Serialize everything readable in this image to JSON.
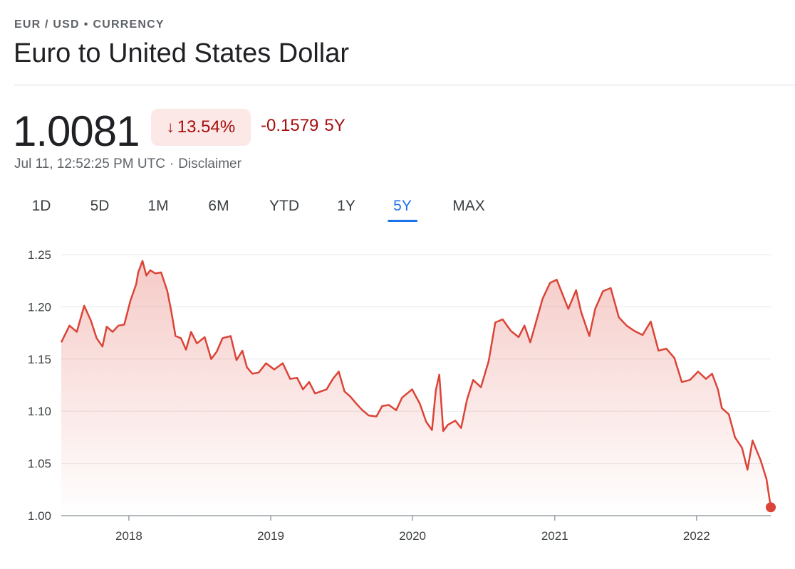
{
  "header": {
    "breadcrumb": [
      "EUR / USD",
      "•",
      "CURRENCY"
    ],
    "title": "Euro to United States Dollar"
  },
  "quote": {
    "price": "1.0081",
    "arrow_icon": "arrow-down-icon",
    "percent_change": "13.54%",
    "abs_change": "-0.1579",
    "period": "5Y",
    "timestamp": "Jul 11, 12:52:25 PM UTC",
    "separator": "·",
    "disclaimer": "Disclaimer"
  },
  "tabs": [
    {
      "label": "1D",
      "active": false
    },
    {
      "label": "5D",
      "active": false
    },
    {
      "label": "1M",
      "active": false
    },
    {
      "label": "6M",
      "active": false
    },
    {
      "label": "YTD",
      "active": false
    },
    {
      "label": "1Y",
      "active": false
    },
    {
      "label": "5Y",
      "active": true
    },
    {
      "label": "MAX",
      "active": false
    }
  ],
  "colors": {
    "line": "#db4437",
    "negative_text": "#a50e0e",
    "negative_bg": "#fce8e6",
    "active_tab": "#1a73e8"
  },
  "chart_data": {
    "type": "area",
    "xlabel": "",
    "ylabel": "",
    "ylim": [
      1.0,
      1.25
    ],
    "yticks": [
      "1.00",
      "1.05",
      "1.10",
      "1.15",
      "1.20",
      "1.25"
    ],
    "xtick_labels": [
      "2018",
      "2019",
      "2020",
      "2021",
      "2022"
    ],
    "xlim": [
      "2017-07-11",
      "2022-07-11"
    ],
    "grid": true,
    "series": [
      {
        "x": [
          "2017-07-11",
          "2017-08-01",
          "2017-08-20",
          "2017-09-08",
          "2017-09-25",
          "2017-10-10",
          "2017-10-25",
          "2017-11-05",
          "2017-11-20",
          "2017-12-05",
          "2017-12-20",
          "2018-01-05",
          "2018-01-20",
          "2018-01-25",
          "2018-02-05",
          "2018-02-15",
          "2018-02-25",
          "2018-03-10",
          "2018-03-25",
          "2018-04-10",
          "2018-04-20",
          "2018-05-01",
          "2018-05-15",
          "2018-05-28",
          "2018-06-10",
          "2018-06-25",
          "2018-07-15",
          "2018-08-01",
          "2018-08-15",
          "2018-08-30",
          "2018-09-20",
          "2018-10-05",
          "2018-10-20",
          "2018-11-01",
          "2018-11-15",
          "2018-12-01",
          "2018-12-20",
          "2019-01-10",
          "2019-02-01",
          "2019-02-20",
          "2019-03-10",
          "2019-03-25",
          "2019-04-10",
          "2019-04-25",
          "2019-05-10",
          "2019-05-25",
          "2019-06-10",
          "2019-06-25",
          "2019-07-10",
          "2019-07-25",
          "2019-08-10",
          "2019-08-25",
          "2019-09-10",
          "2019-09-30",
          "2019-10-15",
          "2019-11-01",
          "2019-11-20",
          "2019-12-05",
          "2019-12-31",
          "2020-01-20",
          "2020-02-05",
          "2020-02-20",
          "2020-03-01",
          "2020-03-10",
          "2020-03-20",
          "2020-04-01",
          "2020-04-20",
          "2020-05-05",
          "2020-05-20",
          "2020-06-05",
          "2020-06-25",
          "2020-07-15",
          "2020-08-01",
          "2020-08-20",
          "2020-09-10",
          "2020-09-30",
          "2020-10-15",
          "2020-10-30",
          "2020-11-15",
          "2020-12-01",
          "2020-12-20",
          "2021-01-06",
          "2021-01-20",
          "2021-02-05",
          "2021-02-25",
          "2021-03-10",
          "2021-03-31",
          "2021-04-15",
          "2021-05-05",
          "2021-05-25",
          "2021-06-15",
          "2021-07-05",
          "2021-07-25",
          "2021-08-15",
          "2021-09-05",
          "2021-09-25",
          "2021-10-15",
          "2021-11-05",
          "2021-11-24",
          "2021-12-15",
          "2022-01-05",
          "2022-01-25",
          "2022-02-10",
          "2022-02-25",
          "2022-03-07",
          "2022-03-25",
          "2022-04-10",
          "2022-04-28",
          "2022-05-12",
          "2022-05-25",
          "2022-06-15",
          "2022-06-30",
          "2022-07-11"
        ],
        "y": [
          1.166,
          1.182,
          1.176,
          1.201,
          1.187,
          1.17,
          1.162,
          1.181,
          1.176,
          1.182,
          1.183,
          1.206,
          1.222,
          1.233,
          1.244,
          1.23,
          1.235,
          1.232,
          1.233,
          1.215,
          1.196,
          1.172,
          1.17,
          1.159,
          1.176,
          1.165,
          1.171,
          1.15,
          1.157,
          1.17,
          1.172,
          1.149,
          1.158,
          1.142,
          1.136,
          1.137,
          1.146,
          1.14,
          1.146,
          1.131,
          1.132,
          1.121,
          1.128,
          1.117,
          1.119,
          1.121,
          1.131,
          1.138,
          1.119,
          1.114,
          1.107,
          1.101,
          1.096,
          1.095,
          1.105,
          1.106,
          1.101,
          1.113,
          1.121,
          1.107,
          1.09,
          1.082,
          1.12,
          1.135,
          1.081,
          1.087,
          1.091,
          1.084,
          1.111,
          1.13,
          1.123,
          1.148,
          1.185,
          1.188,
          1.177,
          1.171,
          1.182,
          1.166,
          1.187,
          1.208,
          1.223,
          1.226,
          1.213,
          1.198,
          1.216,
          1.195,
          1.172,
          1.198,
          1.215,
          1.218,
          1.19,
          1.182,
          1.177,
          1.173,
          1.186,
          1.158,
          1.16,
          1.151,
          1.128,
          1.13,
          1.138,
          1.131,
          1.136,
          1.121,
          1.103,
          1.097,
          1.075,
          1.065,
          1.044,
          1.072,
          1.053,
          1.035,
          1.008
        ]
      }
    ]
  }
}
